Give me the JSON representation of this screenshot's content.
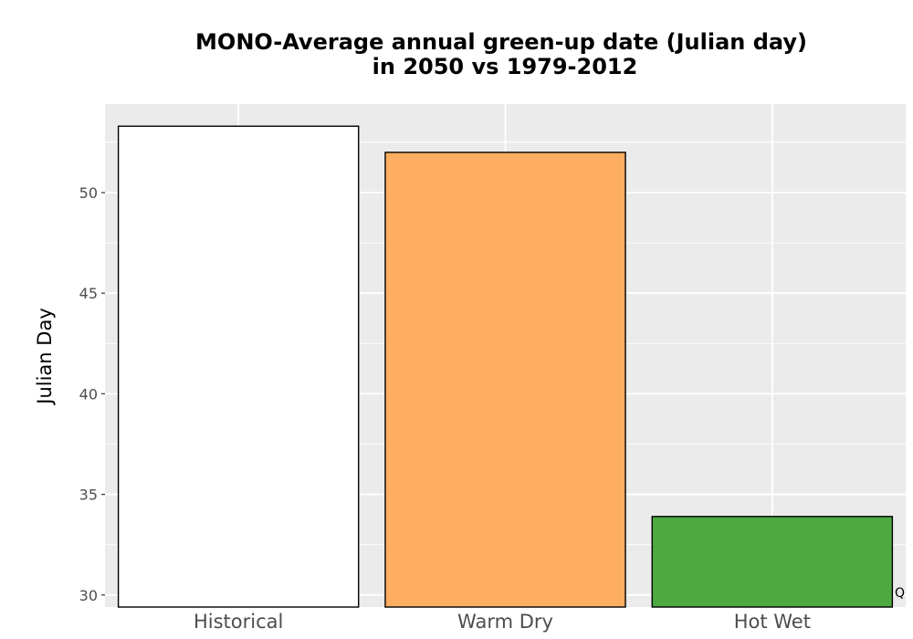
{
  "chart_data": {
    "type": "bar",
    "title_lines": [
      "MONO-Average annual green-up date (Julian day)",
      "in 2050 vs 1979-2012"
    ],
    "xlabel": "",
    "ylabel": "Julian Day",
    "categories": [
      "Historical",
      "Warm Dry",
      "Hot Wet"
    ],
    "values": [
      53.3,
      52.0,
      33.9
    ],
    "bar_colors": [
      "#ffffff",
      "#fdae61",
      "#4daa41"
    ],
    "bar_outline_color": "#000000",
    "ylim": [
      29.4,
      54.4
    ],
    "yticks": [
      30,
      35,
      40,
      45,
      50
    ],
    "grid": true,
    "panel_background": "#ebebeb",
    "grid_color": "#ffffff",
    "corner_mark": "Q"
  }
}
